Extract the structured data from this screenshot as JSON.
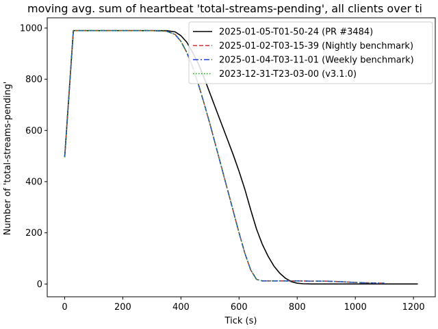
{
  "chart_data": {
    "type": "line",
    "title": "moving avg. sum of heartbeat 'total-streams-pending', all clients over ti",
    "xlabel": "Tick (s)",
    "ylabel": "Number of 'total-streams-pending'",
    "xlim": [
      -60,
      1275
    ],
    "ylim": [
      -50,
      1040
    ],
    "xticks": [
      0,
      200,
      400,
      600,
      800,
      1000,
      1200
    ],
    "yticks": [
      0,
      200,
      400,
      600,
      800,
      1000
    ],
    "grid": false,
    "legend_position": "top-right",
    "series": [
      {
        "name": "2025-01-05-T01-50-24 (PR #3484)",
        "color": "#000000",
        "dash": "solid",
        "x": [
          0,
          30,
          60,
          100,
          200,
          300,
          350,
          380,
          400,
          420,
          440,
          460,
          480,
          500,
          520,
          540,
          560,
          580,
          600,
          620,
          640,
          660,
          680,
          700,
          720,
          740,
          760,
          780,
          800,
          820,
          850,
          900,
          1000,
          1100,
          1215
        ],
        "y": [
          495,
          990,
          990,
          990,
          990,
          990,
          990,
          985,
          970,
          945,
          905,
          860,
          805,
          745,
          685,
          625,
          565,
          505,
          440,
          370,
          290,
          215,
          155,
          108,
          70,
          42,
          22,
          9,
          3,
          1,
          0,
          0,
          0,
          0,
          0
        ]
      },
      {
        "name": "2025-01-02-T03-15-39 (Nightly benchmark)",
        "color": "#d62728",
        "dash": "dashed",
        "x": [
          0,
          30,
          60,
          100,
          200,
          300,
          350,
          380,
          400,
          420,
          440,
          460,
          480,
          500,
          520,
          540,
          560,
          580,
          600,
          620,
          640,
          660,
          680,
          700,
          750,
          800,
          850,
          900,
          950,
          1000,
          1050,
          1100
        ],
        "y": [
          495,
          990,
          990,
          990,
          990,
          990,
          988,
          975,
          948,
          905,
          848,
          780,
          705,
          625,
          540,
          455,
          370,
          285,
          200,
          120,
          55,
          18,
          12,
          12,
          12,
          12,
          11,
          11,
          9,
          6,
          4,
          3
        ]
      },
      {
        "name": "2025-01-04-T03-11-01 (Weekly benchmark)",
        "color": "#1f3fd8",
        "dash": "dashdot",
        "x": [
          0,
          30,
          60,
          100,
          200,
          300,
          350,
          380,
          400,
          420,
          440,
          460,
          480,
          500,
          520,
          540,
          560,
          580,
          600,
          620,
          640,
          660,
          680,
          700,
          750,
          800,
          850,
          900,
          950,
          1000,
          1050,
          1100
        ],
        "y": [
          495,
          990,
          990,
          990,
          990,
          990,
          988,
          975,
          948,
          905,
          848,
          780,
          705,
          625,
          540,
          455,
          370,
          285,
          200,
          120,
          55,
          18,
          12,
          12,
          12,
          12,
          11,
          11,
          9,
          6,
          4,
          3
        ]
      },
      {
        "name": "2023-12-31-T23-03-00 (v3.1.0)",
        "color": "#2ca02c",
        "dash": "dotted",
        "x": [
          0,
          30,
          60,
          100,
          200,
          300,
          350,
          380,
          400,
          420,
          440,
          460,
          480,
          500,
          520,
          540,
          560,
          580,
          600,
          620,
          640,
          660,
          680,
          700,
          750,
          800,
          850,
          900,
          950,
          1000,
          1050,
          1100
        ],
        "y": [
          495,
          990,
          990,
          990,
          990,
          990,
          988,
          975,
          948,
          905,
          848,
          780,
          705,
          625,
          540,
          455,
          370,
          285,
          200,
          120,
          55,
          18,
          12,
          12,
          12,
          12,
          11,
          11,
          9,
          6,
          4,
          3
        ]
      }
    ]
  }
}
